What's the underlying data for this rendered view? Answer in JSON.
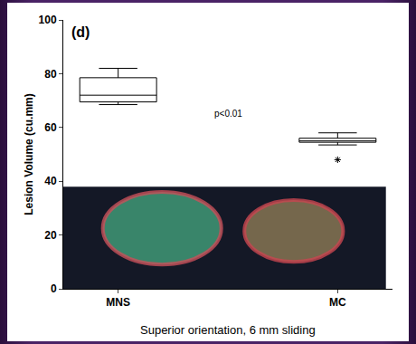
{
  "chart_data": {
    "type": "box",
    "panel_label": "(d)",
    "y_label": "Lesion Volume (cu.mm)",
    "caption": "Superior orientation, 6 mm sliding",
    "annotation": "p<0.01",
    "categories": [
      "MNS",
      "MC"
    ],
    "min": [
      68.5,
      53.5
    ],
    "q1": [
      69.5,
      54.5
    ],
    "median": [
      72,
      55
    ],
    "q3": [
      78.5,
      56
    ],
    "max": [
      82,
      58
    ],
    "outliers": [
      [],
      [
        48
      ]
    ],
    "color": "#000000",
    "marker": "asterisk",
    "ylim": [
      0,
      100
    ],
    "yticks": [
      0,
      20,
      40,
      60,
      80,
      100
    ],
    "grid": false
  }
}
